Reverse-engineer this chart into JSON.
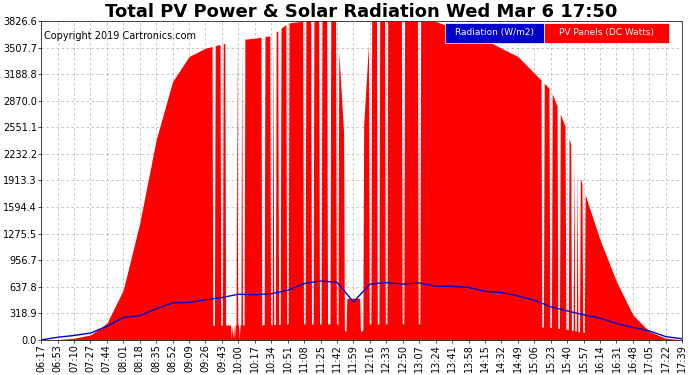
{
  "title": "Total PV Power & Solar Radiation Wed Mar 6 17:50",
  "copyright": "Copyright 2019 Cartronics.com",
  "legend_radiation": "Radiation (W/m2)",
  "legend_pv": "PV Panels (DC Watts)",
  "ymax": 3826.6,
  "ymin": 0.0,
  "yticks": [
    0.0,
    318.9,
    637.8,
    956.7,
    1275.5,
    1594.4,
    1913.3,
    2232.2,
    2551.1,
    2870.0,
    3188.8,
    3507.7,
    3826.6
  ],
  "ytick_labels": [
    "0.0",
    "318.9",
    "637.8",
    "956.7",
    "1275.5",
    "1594.4",
    "1913.3",
    "2232.2",
    "2551.1",
    "2870.0",
    "3188.8",
    "3507.7",
    "3826.6"
  ],
  "xtick_labels": [
    "06:17",
    "06:53",
    "07:10",
    "07:27",
    "07:44",
    "08:01",
    "08:18",
    "08:35",
    "08:52",
    "09:09",
    "09:26",
    "09:43",
    "10:00",
    "10:17",
    "10:34",
    "10:51",
    "11:08",
    "11:25",
    "11:42",
    "11:59",
    "12:16",
    "12:33",
    "12:50",
    "13:07",
    "13:24",
    "13:41",
    "13:58",
    "14:15",
    "14:32",
    "14:49",
    "15:06",
    "15:23",
    "15:40",
    "15:57",
    "16:14",
    "16:31",
    "16:48",
    "17:05",
    "17:22",
    "17:39"
  ],
  "background_color": "#ffffff",
  "plot_bg_color": "#ffffff",
  "grid_color": "#bbbbbb",
  "pv_color": "#ff0000",
  "radiation_color": "#0000cc",
  "title_fontsize": 13,
  "copyright_fontsize": 7,
  "tick_fontsize": 7,
  "legend_radiation_bg": "#0000cc",
  "legend_pv_bg": "#ff0000",
  "legend_text_color": "#ffffff",
  "pv_values": [
    0,
    5,
    20,
    60,
    200,
    600,
    1400,
    2400,
    3100,
    3400,
    3500,
    3550,
    3600,
    3620,
    3650,
    3800,
    3826,
    3826,
    3826,
    500,
    3826,
    3826,
    3826,
    3826,
    3820,
    3750,
    3700,
    3600,
    3500,
    3400,
    3200,
    3000,
    2500,
    1800,
    1200,
    700,
    300,
    100,
    20,
    2
  ],
  "radiation_values": [
    5,
    20,
    50,
    100,
    170,
    250,
    320,
    380,
    430,
    460,
    490,
    510,
    530,
    550,
    560,
    600,
    650,
    680,
    680,
    450,
    660,
    670,
    680,
    670,
    660,
    650,
    620,
    600,
    570,
    540,
    480,
    430,
    370,
    310,
    250,
    200,
    150,
    100,
    50,
    10
  ]
}
